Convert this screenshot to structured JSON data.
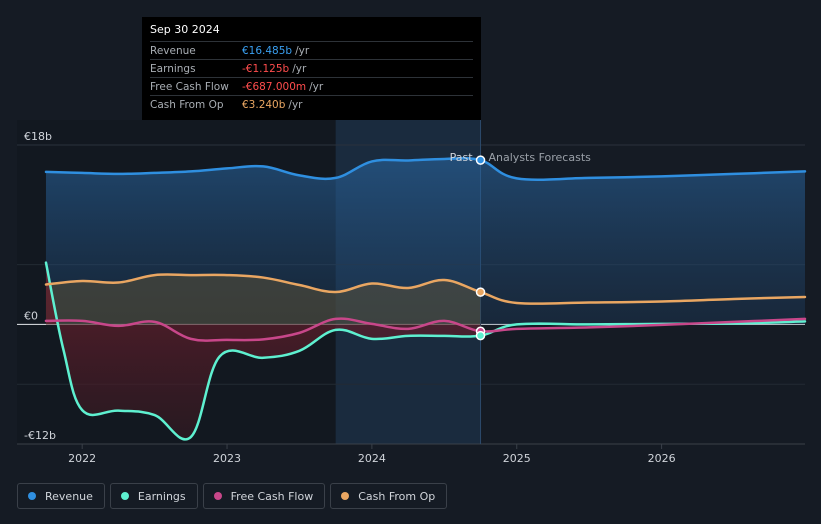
{
  "tooltip": {
    "date": "Sep 30 2024",
    "rows": [
      {
        "label": "Revenue",
        "value": "€16.485b",
        "unit": "/yr",
        "color": "#3a9ff0"
      },
      {
        "label": "Earnings",
        "value": "-€1.125b",
        "unit": "/yr",
        "color": "#ff4d4d"
      },
      {
        "label": "Free Cash Flow",
        "value": "-€687.000m",
        "unit": "/yr",
        "color": "#ff4d4d"
      },
      {
        "label": "Cash From Op",
        "value": "€3.240b",
        "unit": "/yr",
        "color": "#e9a662"
      }
    ]
  },
  "labels": {
    "past": "Past",
    "forecast": "Analysts Forecasts"
  },
  "legend": [
    {
      "label": "Revenue",
      "color": "#2f8fe0"
    },
    {
      "label": "Earnings",
      "color": "#5ef0d0"
    },
    {
      "label": "Free Cash Flow",
      "color": "#c8478a"
    },
    {
      "label": "Cash From Op",
      "color": "#e9a662"
    }
  ],
  "chart_data": {
    "type": "line",
    "y_ticks": [
      {
        "value": 18,
        "label": "€18b"
      },
      {
        "value": 0,
        "label": "€0"
      },
      {
        "value": -12,
        "label": "-€12b"
      }
    ],
    "x_ticks": [
      {
        "value": 2022,
        "label": "2022"
      },
      {
        "value": 2023,
        "label": "2023"
      },
      {
        "value": 2024,
        "label": "2024"
      },
      {
        "value": 2025,
        "label": "2025"
      },
      {
        "value": 2026,
        "label": "2026"
      }
    ],
    "ylim": [
      -12,
      18
    ],
    "xlim": [
      2021.55,
      2026.99
    ],
    "past_end": 2024.75,
    "highlight_start": 2023.75,
    "series": [
      {
        "name": "Revenue",
        "color": "#2f8fe0",
        "fill": true,
        "points": [
          [
            2021.75,
            15.3
          ],
          [
            2022.0,
            15.2
          ],
          [
            2022.25,
            15.1
          ],
          [
            2022.5,
            15.2
          ],
          [
            2022.75,
            15.35
          ],
          [
            2023.0,
            15.65
          ],
          [
            2023.25,
            15.85
          ],
          [
            2023.5,
            14.95
          ],
          [
            2023.75,
            14.7
          ],
          [
            2024.0,
            16.35
          ],
          [
            2024.25,
            16.45
          ],
          [
            2024.5,
            16.6
          ],
          [
            2024.75,
            16.485
          ],
          [
            2025.0,
            14.65
          ],
          [
            2025.5,
            14.7
          ],
          [
            2026.0,
            14.85
          ],
          [
            2026.5,
            15.1
          ],
          [
            2026.99,
            15.35
          ]
        ]
      },
      {
        "name": "Cash From Op",
        "color": "#e9a662",
        "fill": true,
        "points": [
          [
            2021.75,
            4.0
          ],
          [
            2022.0,
            4.35
          ],
          [
            2022.25,
            4.2
          ],
          [
            2022.5,
            4.95
          ],
          [
            2022.75,
            4.95
          ],
          [
            2023.0,
            4.95
          ],
          [
            2023.25,
            4.7
          ],
          [
            2023.5,
            3.95
          ],
          [
            2023.75,
            3.25
          ],
          [
            2024.0,
            4.1
          ],
          [
            2024.25,
            3.65
          ],
          [
            2024.5,
            4.45
          ],
          [
            2024.75,
            3.24
          ],
          [
            2025.0,
            2.15
          ],
          [
            2025.5,
            2.2
          ],
          [
            2026.0,
            2.3
          ],
          [
            2026.5,
            2.55
          ],
          [
            2026.99,
            2.75
          ]
        ]
      },
      {
        "name": "Free Cash Flow",
        "color": "#c8478a",
        "fill": false,
        "points": [
          [
            2021.75,
            0.35
          ],
          [
            2022.0,
            0.35
          ],
          [
            2022.25,
            -0.15
          ],
          [
            2022.5,
            0.25
          ],
          [
            2022.75,
            -1.45
          ],
          [
            2023.0,
            -1.55
          ],
          [
            2023.25,
            -1.5
          ],
          [
            2023.5,
            -0.85
          ],
          [
            2023.75,
            0.55
          ],
          [
            2024.0,
            0.05
          ],
          [
            2024.25,
            -0.45
          ],
          [
            2024.5,
            0.35
          ],
          [
            2024.75,
            -0.687
          ],
          [
            2025.0,
            -0.45
          ],
          [
            2025.5,
            -0.3
          ],
          [
            2026.0,
            -0.05
          ],
          [
            2026.5,
            0.25
          ],
          [
            2026.99,
            0.55
          ]
        ]
      },
      {
        "name": "Earnings",
        "color": "#5ef0d0",
        "fill": true,
        "points": [
          [
            2021.75,
            6.2
          ],
          [
            2021.87,
            -2.5
          ],
          [
            2022.0,
            -8.6
          ],
          [
            2022.25,
            -8.65
          ],
          [
            2022.5,
            -9.1
          ],
          [
            2022.75,
            -11.3
          ],
          [
            2022.95,
            -3.2
          ],
          [
            2023.25,
            -3.35
          ],
          [
            2023.5,
            -2.65
          ],
          [
            2023.75,
            -0.55
          ],
          [
            2024.0,
            -1.45
          ],
          [
            2024.25,
            -1.15
          ],
          [
            2024.5,
            -1.15
          ],
          [
            2024.75,
            -1.125
          ],
          [
            2025.0,
            0.0
          ],
          [
            2025.5,
            0.0
          ],
          [
            2026.0,
            0.05
          ],
          [
            2026.5,
            0.1
          ],
          [
            2026.99,
            0.3
          ]
        ]
      }
    ]
  }
}
